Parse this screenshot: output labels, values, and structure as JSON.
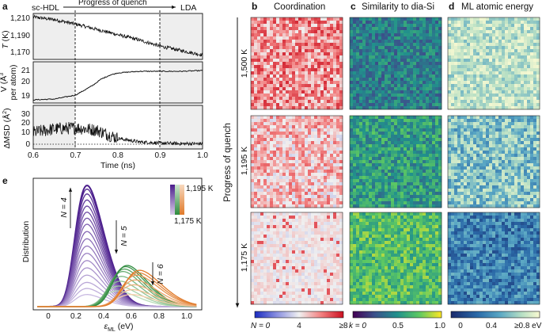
{
  "panel_a": {
    "letter": "a",
    "top_left_label": "sc-HDL",
    "arrow_label": "Progress of quench",
    "top_right_label": "LDA",
    "xlabel": "Time (ns)",
    "x_ticks": [
      "0.6",
      "0.7",
      "0.8",
      "0.9",
      "1.0"
    ],
    "T": {
      "ylabel_sym": "T",
      "ylabel_unit": " (K)",
      "ticks": [
        "1,210",
        "1,190",
        "1,170"
      ]
    },
    "V": {
      "ylabel_line1": "V (Å",
      "ylabel_sup": "3",
      "ylabel_line2": "per atom)",
      "ticks": [
        "21",
        "20",
        "19"
      ]
    },
    "MSD": {
      "ylabel": "ΔMSD (Å",
      "ylabel_sup": "2",
      "ylabel_end": ")",
      "ticks": [
        "30",
        "20",
        "10",
        "0"
      ]
    }
  },
  "panel_e": {
    "letter": "e",
    "ylabel": "Distribution",
    "xlabel_main": "ε",
    "xlabel_sub": "ML",
    "xlabel_unit": " (eV)",
    "x_ticks": [
      "0",
      "0.2",
      "0.4",
      "0.6",
      "0.8",
      "1.0"
    ],
    "legend_top": "1,195 K",
    "legend_bottom": "1,175 K",
    "n4": "N = 4",
    "n5": "N = 5",
    "n6": "N = 6"
  },
  "maps": {
    "side_title": "Progress of quench",
    "row_labels": [
      "1,500 K",
      "1,195 K",
      "1,175 K"
    ],
    "cols": [
      {
        "letter": "b",
        "title": "Coordination"
      },
      {
        "letter": "c",
        "title": "Similarity to dia-Si"
      },
      {
        "letter": "d",
        "title": "ML atomic energy"
      }
    ],
    "colorbars": {
      "b": {
        "label_left": "N = 0",
        "mid": "4",
        "right": "≥8"
      },
      "c": {
        "label_left": "k = 0",
        "mid": "0.5",
        "right": "1.0"
      },
      "d": {
        "label_left": "0",
        "mid": "0.4",
        "right": "≥0.8 eV"
      }
    }
  },
  "colors": {
    "viridis": [
      "#440154",
      "#3b528b",
      "#21918c",
      "#5ec962",
      "#fde725"
    ],
    "coordination": [
      "#1b2cc1",
      "#8a90e0",
      "#f0f0f0",
      "#f28080",
      "#cc1020"
    ],
    "energy": [
      "#1a2a6c",
      "#2b6aa8",
      "#5aa7c4",
      "#b7dfc4",
      "#fafad2"
    ],
    "purple": "#4b1e8c",
    "green": "#2e8b3e",
    "orange": "#e07a2a"
  },
  "chart_data": [
    {
      "type": "line",
      "subplot": "T",
      "x_range": [
        0.6,
        1.0
      ],
      "ylim": [
        1160,
        1212
      ],
      "series": [
        {
          "x": [
            0.6,
            0.65,
            0.7,
            0.75,
            0.8,
            0.85,
            0.9,
            0.95,
            1.0
          ],
          "y": [
            1208,
            1205,
            1200,
            1194,
            1188,
            1182,
            1175,
            1170,
            1165
          ]
        }
      ]
    },
    {
      "type": "line",
      "subplot": "V",
      "x_range": [
        0.6,
        1.0
      ],
      "ylim": [
        18.8,
        21.4
      ],
      "series": [
        {
          "x": [
            0.6,
            0.65,
            0.7,
            0.72,
            0.74,
            0.76,
            0.78,
            0.8,
            0.85,
            0.9,
            0.95,
            1.0
          ],
          "y": [
            19.0,
            19.05,
            19.3,
            19.6,
            19.9,
            20.3,
            20.55,
            20.7,
            20.8,
            20.8,
            20.8,
            20.85
          ]
        }
      ]
    },
    {
      "type": "line",
      "subplot": "MSD",
      "x_range": [
        0.6,
        1.0
      ],
      "ylim": [
        -4,
        33
      ],
      "series": [
        {
          "x": [
            0.6,
            0.65,
            0.7,
            0.75,
            0.8,
            0.85,
            0.9,
            0.95,
            1.0
          ],
          "y": [
            10,
            13,
            14,
            12,
            5,
            2,
            1,
            0.5,
            0.5
          ]
        }
      ]
    },
    {
      "type": "line",
      "subplot": "energy distribution",
      "x_range": [
        -0.1,
        1.1
      ],
      "groups": [
        {
          "name": "N = 4",
          "mu": 0.28,
          "sigma": 0.1,
          "peaks": [
            1.0,
            0.97,
            0.93,
            0.88,
            0.83,
            0.78,
            0.73,
            0.68,
            0.62,
            0.56,
            0.5,
            0.44,
            0.38,
            0.32,
            0.26,
            0.2,
            0.15,
            0.1
          ]
        },
        {
          "name": "N = 5",
          "mu": 0.5,
          "sigma": 0.12,
          "peaks": [
            0.13,
            0.17,
            0.21,
            0.25,
            0.29,
            0.31,
            0.33,
            0.34
          ]
        },
        {
          "name": "N = 6",
          "mu": 0.6,
          "sigma": 0.13,
          "peaks": [
            0.1,
            0.14,
            0.18,
            0.22,
            0.26,
            0.28,
            0.3
          ]
        }
      ]
    }
  ]
}
